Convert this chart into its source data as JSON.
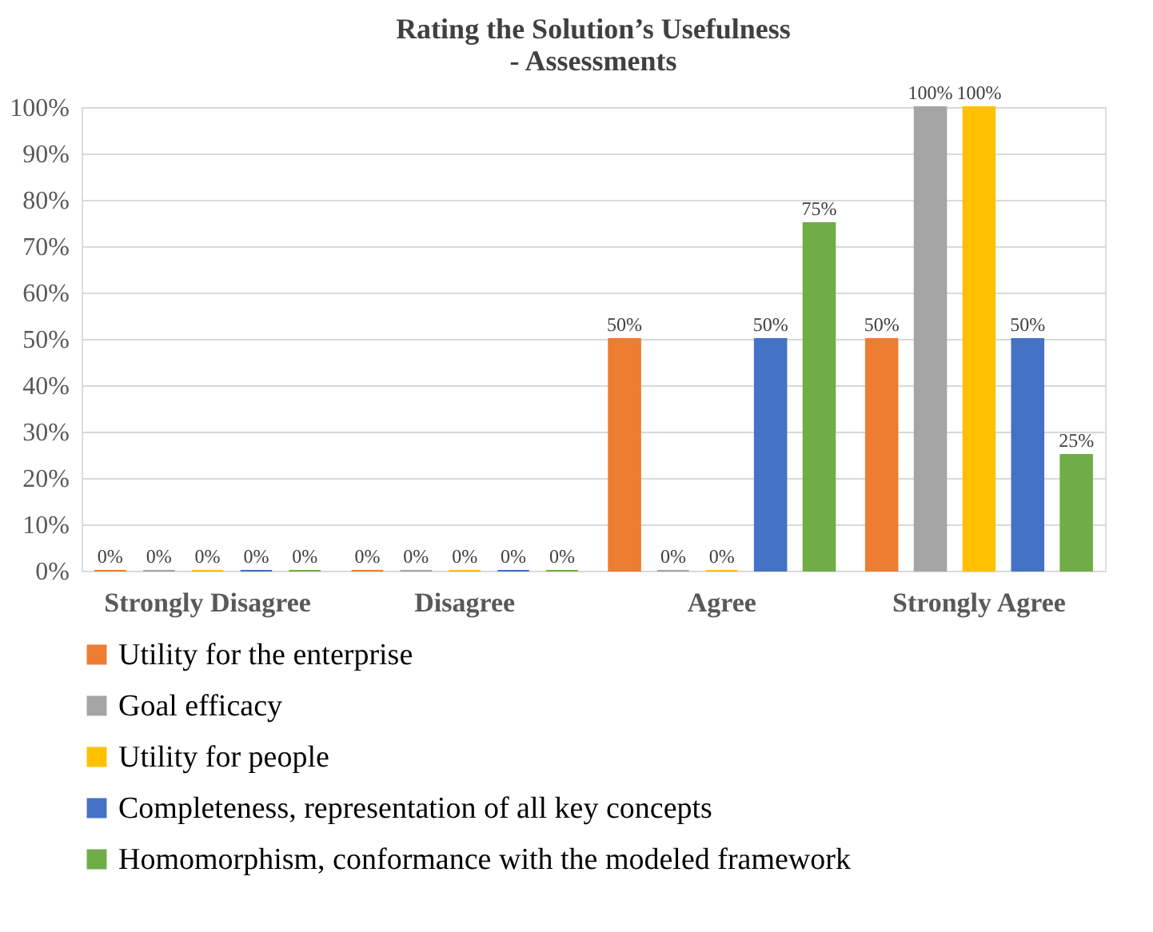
{
  "chart_data": {
    "type": "bar",
    "title": "Rating the Solution’s Usefulness\n- Assessments",
    "categories": [
      "Strongly Disagree",
      "Disagree",
      "Agree",
      "Strongly Agree"
    ],
    "series": [
      {
        "name": "Utility for the enterprise",
        "color": "#ed7d31",
        "values": [
          0,
          0,
          50,
          50
        ],
        "value_labels": [
          "0%",
          "0%",
          "50%",
          "50%"
        ]
      },
      {
        "name": "Goal efficacy",
        "color": "#a5a5a5",
        "values": [
          0,
          0,
          0,
          100
        ],
        "value_labels": [
          "0%",
          "0%",
          "0%",
          "100%"
        ]
      },
      {
        "name": "Utility for people",
        "color": "#ffc000",
        "values": [
          0,
          0,
          0,
          100
        ],
        "value_labels": [
          "0%",
          "0%",
          "0%",
          "100%"
        ]
      },
      {
        "name": "Completeness, representation of all key concepts",
        "color": "#4472c4",
        "values": [
          0,
          0,
          50,
          50
        ],
        "value_labels": [
          "0%",
          "0%",
          "50%",
          "50%"
        ]
      },
      {
        "name": "Homomorphism, conformance with the modeled framework",
        "color": "#70ad47",
        "values": [
          0,
          0,
          75,
          25
        ],
        "value_labels": [
          "0%",
          "0%",
          "75%",
          "25%"
        ]
      }
    ],
    "ylim": [
      0,
      100
    ],
    "yticks": [
      {
        "value": 0,
        "label": "0%"
      },
      {
        "value": 10,
        "label": "10%"
      },
      {
        "value": 20,
        "label": "20%"
      },
      {
        "value": 30,
        "label": "30%"
      },
      {
        "value": 40,
        "label": "40%"
      },
      {
        "value": 50,
        "label": "50%"
      },
      {
        "value": 60,
        "label": "60%"
      },
      {
        "value": 70,
        "label": "70%"
      },
      {
        "value": 80,
        "label": "80%"
      },
      {
        "value": 90,
        "label": "90%"
      },
      {
        "value": 100,
        "label": "100%"
      }
    ],
    "grid": "y",
    "legend": "bottom"
  }
}
